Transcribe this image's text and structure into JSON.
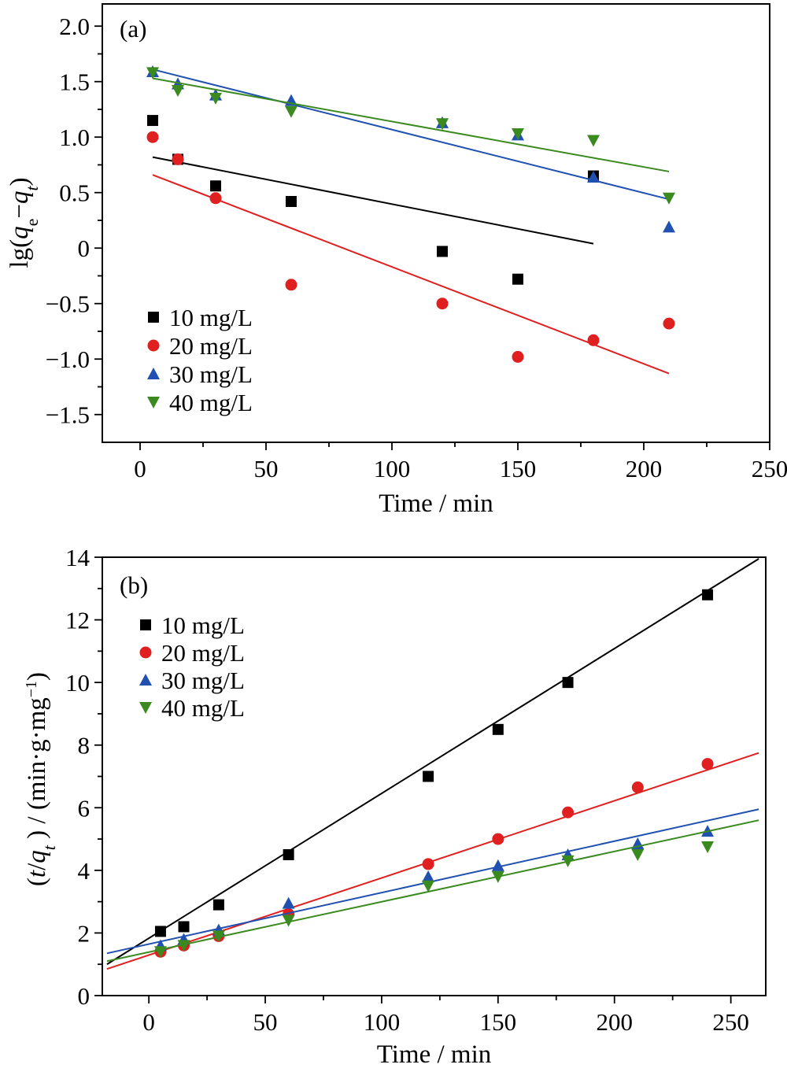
{
  "chart_data": [
    {
      "type": "scatter",
      "panel_label": "(a)",
      "xlabel": "Time / min",
      "ylabel_parts": [
        "lg(",
        "q",
        "e",
        "−",
        "q",
        "t",
        ")"
      ],
      "xlim": [
        -15,
        250
      ],
      "ylim": [
        -1.75,
        2.2
      ],
      "xticks": [
        0,
        50,
        100,
        150,
        200,
        250
      ],
      "xtick_labels": [
        "0",
        "50",
        "100",
        "150",
        "200",
        "250"
      ],
      "yticks": [
        2.0,
        1.5,
        1.0,
        0.5,
        0,
        -0.5,
        -1.0,
        -1.5
      ],
      "ytick_labels": [
        "2.0",
        "1.5",
        "1.0",
        "0.5",
        "0",
        "−0.5",
        "−1.0",
        "−1.5"
      ],
      "legend_position": "bottom-left",
      "series": [
        {
          "name": "10 mg/L",
          "color": "#000000",
          "marker": "square",
          "x": [
            5,
            15,
            30,
            60,
            120,
            150,
            180
          ],
          "y": [
            1.15,
            0.8,
            0.56,
            0.42,
            -0.03,
            -0.28,
            0.65
          ],
          "fit": [
            [
              5,
              0.82
            ],
            [
              180,
              0.04
            ]
          ]
        },
        {
          "name": "20 mg/L",
          "color": "#e02020",
          "marker": "circle",
          "x": [
            5,
            15,
            30,
            60,
            120,
            150,
            180,
            210
          ],
          "y": [
            1.0,
            0.8,
            0.45,
            -0.33,
            -0.5,
            -0.98,
            -0.83,
            -0.68
          ],
          "fit": [
            [
              5,
              0.66
            ],
            [
              210,
              -1.13
            ]
          ]
        },
        {
          "name": "30 mg/L",
          "color": "#2050b0",
          "marker": "triangle-up",
          "x": [
            5,
            15,
            30,
            60,
            120,
            150,
            180,
            210
          ],
          "y": [
            1.59,
            1.48,
            1.38,
            1.33,
            1.13,
            1.02,
            0.64,
            0.19
          ],
          "fit": [
            [
              5,
              1.61
            ],
            [
              210,
              0.44
            ]
          ]
        },
        {
          "name": "40 mg/L",
          "color": "#3a8a20",
          "marker": "triangle-down",
          "x": [
            5,
            15,
            30,
            60,
            120,
            150,
            180,
            210
          ],
          "y": [
            1.58,
            1.42,
            1.35,
            1.23,
            1.12,
            1.03,
            0.97,
            0.45
          ],
          "fit": [
            [
              5,
              1.53
            ],
            [
              210,
              0.69
            ]
          ]
        }
      ]
    },
    {
      "type": "scatter",
      "panel_label": "(b)",
      "xlabel": "Time / min",
      "ylabel_parts": [
        "(",
        "t",
        "/",
        "q",
        "t",
        " ) / (min·g·mg",
        "−1",
        ")"
      ],
      "xlim": [
        -20,
        265
      ],
      "ylim": [
        0,
        14
      ],
      "xticks": [
        0,
        50,
        100,
        150,
        200,
        250
      ],
      "xtick_labels": [
        "0",
        "50",
        "100",
        "150",
        "200",
        "250"
      ],
      "yticks": [
        0,
        2,
        4,
        6,
        8,
        10,
        12,
        14
      ],
      "ytick_labels": [
        "0",
        "2",
        "4",
        "6",
        "8",
        "10",
        "12",
        "14"
      ],
      "legend_position": "top-left",
      "series": [
        {
          "name": "10 mg/L",
          "color": "#000000",
          "marker": "square",
          "x": [
            5,
            15,
            30,
            60,
            120,
            150,
            180,
            240
          ],
          "y": [
            2.05,
            2.2,
            2.9,
            4.5,
            7.0,
            8.5,
            10.0,
            12.8
          ],
          "fit": [
            [
              -18,
              1.0
            ],
            [
              262,
              13.95
            ]
          ]
        },
        {
          "name": "20 mg/L",
          "color": "#e02020",
          "marker": "circle",
          "x": [
            5,
            15,
            30,
            60,
            120,
            150,
            180,
            210,
            240
          ],
          "y": [
            1.4,
            1.6,
            1.9,
            2.6,
            4.2,
            5.0,
            5.85,
            6.65,
            7.4
          ],
          "fit": [
            [
              -18,
              0.85
            ],
            [
              262,
              7.75
            ]
          ]
        },
        {
          "name": "30 mg/L",
          "color": "#2050b0",
          "marker": "triangle-up",
          "x": [
            5,
            15,
            30,
            60,
            120,
            150,
            180,
            210,
            240
          ],
          "y": [
            1.6,
            1.8,
            2.1,
            2.95,
            3.8,
            4.15,
            4.5,
            4.85,
            5.25
          ],
          "fit": [
            [
              -18,
              1.35
            ],
            [
              262,
              5.95
            ]
          ]
        },
        {
          "name": "40 mg/L",
          "color": "#3a8a20",
          "marker": "triangle-down",
          "x": [
            5,
            15,
            30,
            60,
            120,
            150,
            180,
            210,
            240
          ],
          "y": [
            1.4,
            1.6,
            1.9,
            2.4,
            3.5,
            3.8,
            4.3,
            4.5,
            4.75
          ],
          "fit": [
            [
              -18,
              1.1
            ],
            [
              262,
              5.6
            ]
          ]
        }
      ]
    }
  ]
}
